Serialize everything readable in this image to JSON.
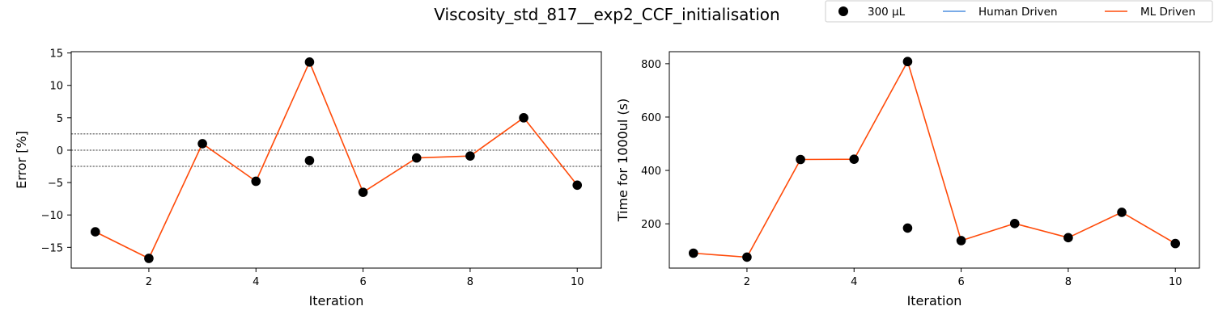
{
  "title": "Viscosity_std_817__exp2_CCF_initialisation",
  "legend": {
    "placement": "top-right",
    "entries": [
      {
        "label": "300 µL",
        "kind": "marker",
        "color": "#000000"
      },
      {
        "label": "Human Driven",
        "kind": "line",
        "color": "#4f8fdf"
      },
      {
        "label": "ML Driven",
        "kind": "line",
        "color": "#ff4b0a"
      }
    ]
  },
  "chart_data": [
    {
      "type": "line",
      "xlabel": "Iteration",
      "ylabel": "Error [%]",
      "xlim": [
        0.55,
        10.45
      ],
      "ylim": [
        -18.2,
        15.2
      ],
      "xticks": [
        2,
        4,
        6,
        8,
        10
      ],
      "yticks": [
        -15,
        -10,
        -5,
        0,
        5,
        10,
        15
      ],
      "reference_lines": [
        2.5,
        0,
        -2.5
      ],
      "series": [
        {
          "name": "300 µL",
          "kind": "scatter",
          "color": "#000000",
          "x": [
            1,
            2,
            3,
            4,
            5,
            5,
            6,
            7,
            8,
            9,
            10
          ],
          "y": [
            -12.6,
            -16.7,
            1.0,
            -4.8,
            13.6,
            -1.6,
            -6.5,
            -1.2,
            -0.9,
            5.0,
            -5.4
          ]
        },
        {
          "name": "ML Driven",
          "kind": "line",
          "color": "#ff4b0a",
          "x": [
            1,
            2,
            3,
            4,
            5,
            6,
            7,
            8,
            9,
            10
          ],
          "y": [
            -12.6,
            -16.7,
            1.0,
            -4.8,
            13.6,
            -6.5,
            -1.2,
            -0.9,
            5.0,
            -5.4
          ]
        }
      ]
    },
    {
      "type": "line",
      "xlabel": "Iteration",
      "ylabel": "Time for 1000ul (s)",
      "xlim": [
        0.55,
        10.45
      ],
      "ylim": [
        34,
        845
      ],
      "xticks": [
        2,
        4,
        6,
        8,
        10
      ],
      "yticks": [
        200,
        400,
        600,
        800
      ],
      "reference_lines": [],
      "series": [
        {
          "name": "300 µL",
          "kind": "scatter",
          "color": "#000000",
          "x": [
            1,
            2,
            3,
            4,
            5,
            5,
            6,
            7,
            8,
            9,
            10
          ],
          "y": [
            90,
            75,
            441,
            442,
            808,
            184,
            137,
            201,
            148,
            243,
            126
          ]
        },
        {
          "name": "ML Driven",
          "kind": "line",
          "color": "#ff4b0a",
          "x": [
            1,
            2,
            3,
            4,
            5,
            6,
            7,
            8,
            9,
            10
          ],
          "y": [
            90,
            75,
            441,
            442,
            808,
            137,
            201,
            148,
            243,
            126
          ]
        }
      ]
    }
  ]
}
